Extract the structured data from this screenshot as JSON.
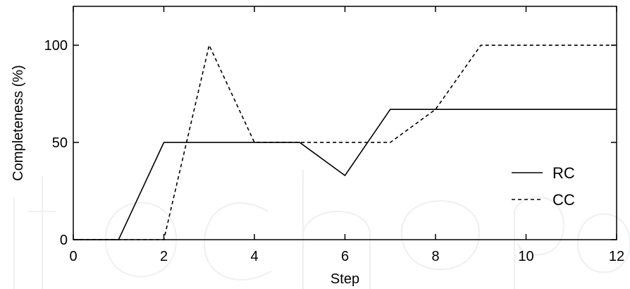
{
  "chart_data": {
    "type": "line",
    "title": "",
    "xlabel": "Step",
    "ylabel": "Completeness (%)",
    "xlim": [
      0,
      12
    ],
    "ylim": [
      0,
      120
    ],
    "xticks": [
      0,
      2,
      4,
      6,
      8,
      10,
      12
    ],
    "yticks": [
      0,
      50,
      100
    ],
    "grid": false,
    "legend_position": "right",
    "series": [
      {
        "name": "RC",
        "style": "solid",
        "color": "#000000",
        "x": [
          0,
          1,
          2,
          3,
          4,
          5,
          6,
          7,
          8,
          9,
          10,
          11,
          12
        ],
        "y": [
          0,
          0,
          50,
          50,
          50,
          50,
          33,
          67,
          67,
          67,
          67,
          67,
          67
        ]
      },
      {
        "name": "CC",
        "style": "dashed",
        "color": "#000000",
        "x": [
          0,
          1,
          2,
          3,
          4,
          5,
          6,
          7,
          8,
          9,
          10,
          11,
          12
        ],
        "y": [
          0,
          0,
          0,
          100,
          50,
          50,
          50,
          50,
          67,
          100,
          100,
          100,
          100
        ]
      }
    ]
  }
}
